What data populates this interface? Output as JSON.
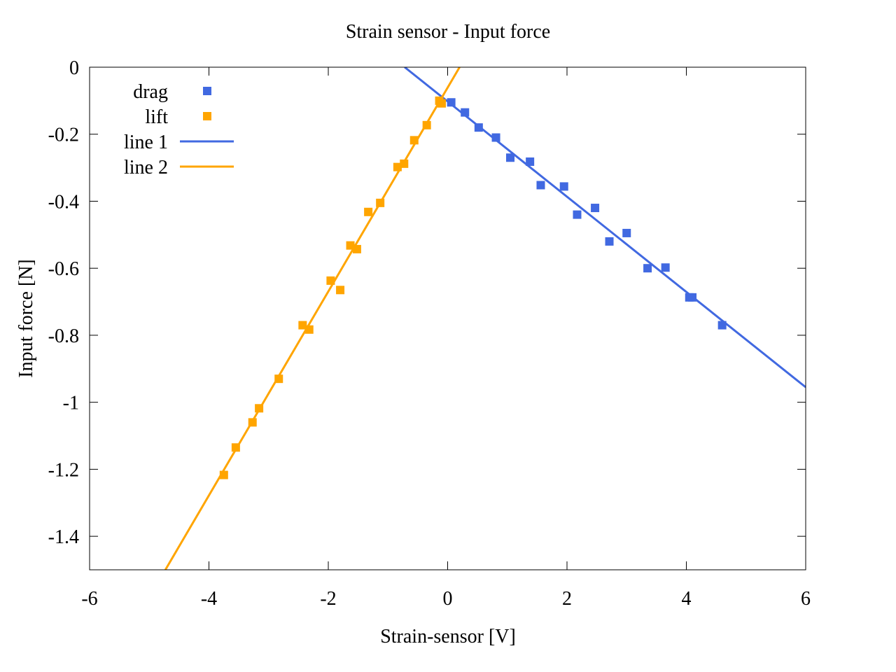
{
  "chart_data": {
    "type": "scatter",
    "title": "Strain sensor - Input force",
    "xlabel": "Strain-sensor [V]",
    "ylabel": "Input force [N]",
    "xlim": [
      -6,
      6
    ],
    "ylim": [
      -1.5,
      0
    ],
    "xticks": [
      -6,
      -4,
      -2,
      0,
      2,
      4,
      6
    ],
    "xtick_labels": [
      "-6",
      "-4",
      "-2",
      "0",
      "2",
      "4",
      "6"
    ],
    "yticks": [
      0,
      -0.2,
      -0.4,
      -0.6,
      -0.8,
      -1,
      -1.2,
      -1.4
    ],
    "ytick_labels": [
      "0",
      "-0.2",
      "-0.4",
      "-0.6",
      "-0.8",
      "-1",
      "-1.2",
      "-1.4"
    ],
    "grid": false,
    "legend_position": "top-left",
    "series": [
      {
        "name": "drag",
        "kind": "points",
        "color": "#4169e1",
        "x": [
          0.06,
          0.29,
          0.52,
          0.81,
          1.05,
          1.38,
          1.56,
          1.95,
          2.17,
          2.47,
          2.71,
          3.0,
          3.35,
          3.65,
          4.05,
          4.1,
          4.6
        ],
        "y": [
          -0.105,
          -0.135,
          -0.18,
          -0.21,
          -0.27,
          -0.282,
          -0.352,
          -0.356,
          -0.44,
          -0.42,
          -0.52,
          -0.495,
          -0.6,
          -0.598,
          -0.687,
          -0.687,
          -0.77
        ]
      },
      {
        "name": "lift",
        "kind": "points",
        "color": "#ffa500",
        "x": [
          -0.14,
          -0.1,
          -0.35,
          -0.56,
          -0.73,
          -0.84,
          -1.13,
          -1.33,
          -1.52,
          -1.63,
          -1.8,
          -1.96,
          -2.32,
          -2.43,
          -2.83,
          -3.16,
          -3.27,
          -3.55,
          -3.75
        ],
        "y": [
          -0.1,
          -0.108,
          -0.173,
          -0.218,
          -0.288,
          -0.298,
          -0.405,
          -0.432,
          -0.543,
          -0.532,
          -0.665,
          -0.637,
          -0.783,
          -0.77,
          -0.93,
          -1.018,
          -1.06,
          -1.135,
          -1.217
        ]
      },
      {
        "name": "line 1",
        "kind": "line",
        "color": "#4169e1",
        "x": [
          -0.72,
          6.0
        ],
        "y": [
          0.0,
          -0.955
        ]
      },
      {
        "name": "line 2",
        "kind": "line",
        "color": "#ffa500",
        "x": [
          0.2,
          -4.73
        ],
        "y": [
          0.0,
          -1.5
        ]
      }
    ]
  }
}
